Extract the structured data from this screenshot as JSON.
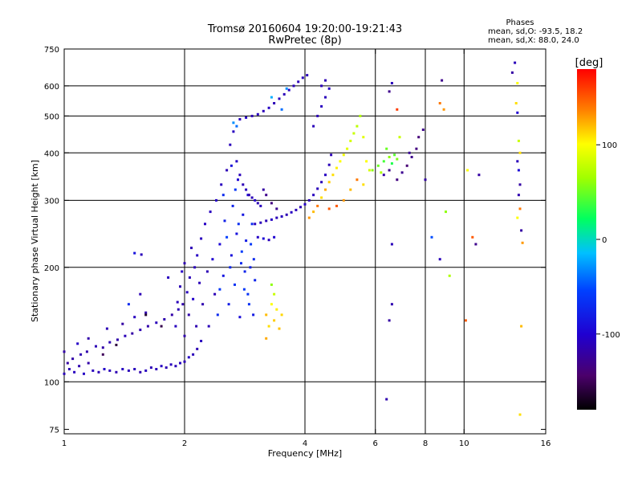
{
  "chart_data": {
    "type": "scatter",
    "title": "Tromsø 20160604 19:20:00-19:21:43",
    "subtitle": "RwPretec (8p)",
    "stats": {
      "heading": "Phases",
      "line1": "mean, sd,O: -93.5, 18.2",
      "line2": "mean, sd,X:  88.0, 24.0"
    },
    "xlabel": "Frequency [MHz]",
    "ylabel": "Stationary phase Virtual Height [km]",
    "xscale": "log",
    "yscale": "log",
    "xlim": [
      1,
      16
    ],
    "ylim": [
      73,
      750
    ],
    "xticks": [
      1,
      2,
      4,
      6,
      8,
      10,
      16
    ],
    "xtick_labels": [
      "1",
      "2",
      "4",
      "6",
      "8",
      "10",
      "16"
    ],
    "xgrid": [
      2,
      4,
      6,
      8,
      10
    ],
    "yticks": [
      75,
      100,
      200,
      300,
      400,
      500,
      600,
      750
    ],
    "ytick_labels": [
      "75",
      "100",
      "200",
      "300",
      "400",
      "500",
      "600",
      "750"
    ],
    "ygrid": [
      100,
      200,
      300,
      400,
      500,
      600
    ],
    "colorbar": {
      "label": "[deg]",
      "range": [
        -180,
        180
      ],
      "ticks": [
        100,
        0,
        -100
      ],
      "tick_labels": [
        "100",
        "0",
        "-100"
      ]
    },
    "grid": true,
    "points": [
      [
        1.0,
        105,
        -110
      ],
      [
        1.03,
        108,
        -112
      ],
      [
        1.06,
        106,
        -108
      ],
      [
        1.09,
        110,
        -115
      ],
      [
        1.12,
        105,
        -106
      ],
      [
        1.15,
        112,
        -118
      ],
      [
        1.18,
        107,
        -109
      ],
      [
        1.22,
        106,
        -112
      ],
      [
        1.26,
        108,
        -104
      ],
      [
        1.3,
        107,
        -110
      ],
      [
        1.35,
        106,
        -113
      ],
      [
        1.4,
        108,
        -107
      ],
      [
        1.45,
        107,
        -111
      ],
      [
        1.5,
        108,
        -109
      ],
      [
        1.55,
        106,
        -114
      ],
      [
        1.6,
        107,
        -108
      ],
      [
        1.65,
        109,
        -112
      ],
      [
        1.7,
        108,
        -110
      ],
      [
        1.75,
        110,
        -107
      ],
      [
        1.8,
        109,
        -113
      ],
      [
        1.85,
        111,
        -109
      ],
      [
        1.9,
        110,
        -111
      ],
      [
        1.95,
        112,
        -108
      ],
      [
        2.0,
        113,
        -112
      ],
      [
        2.05,
        116,
        -106
      ],
      [
        2.1,
        118,
        -110
      ],
      [
        2.15,
        122,
        -113
      ],
      [
        2.2,
        128,
        -108
      ],
      [
        1.02,
        112,
        -120
      ],
      [
        1.05,
        115,
        -118
      ],
      [
        1.1,
        118,
        -114
      ],
      [
        1.14,
        120,
        -116
      ],
      [
        1.2,
        124,
        -112
      ],
      [
        1.25,
        123,
        -118
      ],
      [
        1.3,
        127,
        -113
      ],
      [
        1.36,
        129,
        -116
      ],
      [
        1.42,
        132,
        -111
      ],
      [
        1.48,
        134,
        -119
      ],
      [
        1.55,
        137,
        -114
      ],
      [
        1.62,
        140,
        -117
      ],
      [
        1.7,
        143,
        -110
      ],
      [
        1.78,
        146,
        -115
      ],
      [
        1.86,
        150,
        -118
      ],
      [
        1.93,
        155,
        -112
      ],
      [
        1.98,
        160,
        -116
      ],
      [
        1.0,
        120,
        -118
      ],
      [
        1.08,
        126,
        -105
      ],
      [
        1.15,
        130,
        -117
      ],
      [
        1.28,
        138,
        -112
      ],
      [
        1.4,
        142,
        -120
      ],
      [
        1.5,
        148,
        -108
      ],
      [
        1.6,
        152,
        -115
      ],
      [
        1.45,
        160,
        -70
      ],
      [
        1.55,
        170,
        -112
      ],
      [
        1.5,
        218,
        -88
      ],
      [
        1.56,
        216,
        -110
      ],
      [
        1.82,
        188,
        -108
      ],
      [
        1.25,
        118,
        -150
      ],
      [
        1.35,
        125,
        -160
      ],
      [
        1.6,
        150,
        -165
      ],
      [
        1.75,
        140,
        -155
      ],
      [
        1.9,
        140,
        -108
      ],
      [
        1.92,
        162,
        -110
      ],
      [
        1.95,
        178,
        -112
      ],
      [
        1.97,
        195,
        -105
      ],
      [
        2.0,
        132,
        -116
      ],
      [
        2.0,
        205,
        -114
      ],
      [
        2.03,
        172,
        -108
      ],
      [
        2.05,
        150,
        -116
      ],
      [
        2.06,
        188,
        -110
      ],
      [
        2.08,
        225,
        -112
      ],
      [
        2.1,
        165,
        -103
      ],
      [
        2.12,
        200,
        -110
      ],
      [
        2.14,
        140,
        -114
      ],
      [
        2.15,
        215,
        -106
      ],
      [
        2.18,
        182,
        -111
      ],
      [
        2.2,
        238,
        -109
      ],
      [
        2.22,
        160,
        -115
      ],
      [
        2.25,
        260,
        -106
      ],
      [
        2.28,
        195,
        -112
      ],
      [
        2.3,
        140,
        -110
      ],
      [
        2.32,
        280,
        -108
      ],
      [
        2.35,
        210,
        -100
      ],
      [
        2.38,
        170,
        -112
      ],
      [
        2.4,
        300,
        -105
      ],
      [
        2.42,
        150,
        -70
      ],
      [
        2.45,
        230,
        -95
      ],
      [
        2.47,
        330,
        -108
      ],
      [
        2.5,
        190,
        -85
      ],
      [
        2.52,
        265,
        -78
      ],
      [
        2.55,
        360,
        -112
      ],
      [
        2.58,
        160,
        -80
      ],
      [
        2.6,
        420,
        -110
      ],
      [
        2.62,
        215,
        -90
      ],
      [
        2.64,
        290,
        -75
      ],
      [
        2.65,
        455,
        -108
      ],
      [
        2.67,
        180,
        -65
      ],
      [
        2.7,
        245,
        -88
      ],
      [
        2.72,
        340,
        -100
      ],
      [
        2.75,
        148,
        -92
      ],
      [
        2.77,
        205,
        -70
      ],
      [
        2.8,
        275,
        -85
      ],
      [
        2.82,
        175,
        -60
      ],
      [
        2.85,
        235,
        -80
      ],
      [
        2.88,
        310,
        -92
      ],
      [
        2.9,
        160,
        -65
      ],
      [
        2.92,
        200,
        -78
      ],
      [
        2.95,
        260,
        -70
      ],
      [
        2.97,
        150,
        -82
      ],
      [
        3.0,
        185,
        -75
      ],
      [
        2.45,
        175,
        -60
      ],
      [
        2.5,
        310,
        -70
      ],
      [
        2.55,
        240,
        -55
      ],
      [
        2.6,
        200,
        -72
      ],
      [
        2.62,
        370,
        -90
      ],
      [
        2.68,
        320,
        -62
      ],
      [
        2.73,
        260,
        -68
      ],
      [
        2.78,
        220,
        -58
      ],
      [
        2.83,
        195,
        -75
      ],
      [
        2.88,
        170,
        -64
      ],
      [
        2.93,
        230,
        -60
      ],
      [
        2.98,
        210,
        -70
      ],
      [
        2.7,
        380,
        -105
      ],
      [
        2.75,
        350,
        -110
      ],
      [
        2.8,
        330,
        -112
      ],
      [
        2.85,
        320,
        -108
      ],
      [
        2.9,
        310,
        -115
      ],
      [
        2.95,
        305,
        -110
      ],
      [
        3.0,
        300,
        -105
      ],
      [
        3.05,
        295,
        -112
      ],
      [
        3.1,
        290,
        -108
      ],
      [
        3.15,
        320,
        -120
      ],
      [
        3.2,
        310,
        -130
      ],
      [
        3.3,
        295,
        -135
      ],
      [
        3.4,
        285,
        -128
      ],
      [
        3.0,
        260,
        -108
      ],
      [
        3.1,
        262,
        -110
      ],
      [
        3.2,
        265,
        -112
      ],
      [
        3.3,
        267,
        -106
      ],
      [
        3.4,
        270,
        -111
      ],
      [
        3.5,
        272,
        -108
      ],
      [
        3.6,
        275,
        -113
      ],
      [
        3.7,
        279,
        -107
      ],
      [
        3.8,
        283,
        -110
      ],
      [
        3.9,
        288,
        -112
      ],
      [
        4.0,
        293,
        -106
      ],
      [
        4.1,
        300,
        -111
      ],
      [
        4.2,
        310,
        -108
      ],
      [
        4.3,
        322,
        -110
      ],
      [
        4.4,
        335,
        -112
      ],
      [
        4.5,
        350,
        -107
      ],
      [
        4.6,
        372,
        -110
      ],
      [
        4.65,
        395,
        -112
      ],
      [
        3.05,
        240,
        -105
      ],
      [
        3.15,
        238,
        -95
      ],
      [
        3.25,
        236,
        -110
      ],
      [
        3.35,
        240,
        -100
      ],
      [
        2.75,
        490,
        -110
      ],
      [
        2.85,
        495,
        -105
      ],
      [
        2.95,
        500,
        -112
      ],
      [
        3.05,
        505,
        -108
      ],
      [
        3.15,
        515,
        -110
      ],
      [
        3.25,
        525,
        -106
      ],
      [
        3.35,
        540,
        -112
      ],
      [
        3.45,
        555,
        -109
      ],
      [
        3.55,
        570,
        -111
      ],
      [
        3.65,
        585,
        -107
      ],
      [
        3.75,
        600,
        -110
      ],
      [
        3.85,
        615,
        -112
      ],
      [
        3.95,
        630,
        -108
      ],
      [
        4.05,
        640,
        -110
      ],
      [
        2.65,
        480,
        -30
      ],
      [
        2.7,
        470,
        -40
      ],
      [
        3.3,
        560,
        -20
      ],
      [
        3.5,
        520,
        -40
      ],
      [
        3.6,
        590,
        -30
      ],
      [
        3.2,
        150,
        120
      ],
      [
        3.25,
        140,
        110
      ],
      [
        3.3,
        160,
        100
      ],
      [
        3.35,
        145,
        115
      ],
      [
        3.4,
        155,
        105
      ],
      [
        3.45,
        138,
        118
      ],
      [
        3.5,
        150,
        112
      ],
      [
        3.3,
        180,
        60
      ],
      [
        3.35,
        170,
        80
      ],
      [
        3.2,
        130,
        125
      ],
      [
        4.1,
        270,
        130
      ],
      [
        4.2,
        280,
        120
      ],
      [
        4.3,
        290,
        140
      ],
      [
        4.4,
        305,
        110
      ],
      [
        4.5,
        320,
        125
      ],
      [
        4.6,
        335,
        115
      ],
      [
        4.7,
        350,
        110
      ],
      [
        4.8,
        365,
        105
      ],
      [
        4.9,
        380,
        100
      ],
      [
        5.0,
        395,
        95
      ],
      [
        5.1,
        410,
        90
      ],
      [
        5.2,
        430,
        85
      ],
      [
        5.3,
        450,
        80
      ],
      [
        5.4,
        470,
        75
      ],
      [
        5.5,
        500,
        70
      ],
      [
        5.6,
        440,
        90
      ],
      [
        5.7,
        380,
        100
      ],
      [
        5.8,
        360,
        85
      ],
      [
        5.0,
        300,
        130
      ],
      [
        5.2,
        320,
        120
      ],
      [
        5.4,
        340,
        140
      ],
      [
        5.6,
        330,
        110
      ],
      [
        4.8,
        290,
        150
      ],
      [
        4.6,
        285,
        150
      ],
      [
        4.2,
        470,
        -110
      ],
      [
        4.3,
        500,
        -112
      ],
      [
        4.4,
        530,
        -108
      ],
      [
        4.5,
        560,
        -110
      ],
      [
        4.6,
        590,
        -106
      ],
      [
        4.5,
        620,
        -112
      ],
      [
        4.4,
        600,
        -110
      ],
      [
        5.9,
        360,
        60
      ],
      [
        6.1,
        370,
        50
      ],
      [
        6.3,
        380,
        40
      ],
      [
        6.5,
        390,
        60
      ],
      [
        6.4,
        410,
        50
      ],
      [
        6.6,
        375,
        30
      ],
      [
        6.7,
        395,
        45
      ],
      [
        6.2,
        355,
        70
      ],
      [
        6.8,
        385,
        55
      ],
      [
        6.3,
        350,
        -120
      ],
      [
        6.5,
        360,
        -130
      ],
      [
        6.8,
        340,
        -135
      ],
      [
        7.0,
        355,
        -128
      ],
      [
        7.2,
        370,
        -140
      ],
      [
        7.4,
        390,
        -130
      ],
      [
        7.6,
        410,
        -135
      ],
      [
        7.7,
        440,
        -138
      ],
      [
        7.9,
        460,
        -130
      ],
      [
        7.3,
        400,
        -125
      ],
      [
        6.9,
        440,
        80
      ],
      [
        6.8,
        520,
        160
      ],
      [
        6.6,
        610,
        -110
      ],
      [
        6.5,
        580,
        -130
      ],
      [
        8.8,
        620,
        -130
      ],
      [
        8.7,
        540,
        140
      ],
      [
        8.9,
        520,
        130
      ],
      [
        8.0,
        340,
        -120
      ],
      [
        8.3,
        240,
        -50
      ],
      [
        9.0,
        280,
        60
      ],
      [
        9.2,
        190,
        70
      ],
      [
        8.7,
        210,
        -110
      ],
      [
        10.2,
        360,
        100
      ],
      [
        10.5,
        240,
        150
      ],
      [
        10.9,
        350,
        -120
      ],
      [
        10.7,
        230,
        -130
      ],
      [
        10.1,
        145,
        150
      ],
      [
        6.6,
        230,
        -110
      ],
      [
        6.6,
        160,
        -115
      ],
      [
        6.5,
        145,
        -120
      ],
      [
        6.4,
        90,
        -115
      ],
      [
        13.2,
        650,
        -120
      ],
      [
        13.4,
        690,
        -110
      ],
      [
        13.6,
        610,
        100
      ],
      [
        13.5,
        540,
        110
      ],
      [
        13.6,
        510,
        -100
      ],
      [
        13.7,
        430,
        80
      ],
      [
        13.8,
        400,
        110
      ],
      [
        13.6,
        380,
        -110
      ],
      [
        13.7,
        360,
        -95
      ],
      [
        13.8,
        330,
        -120
      ],
      [
        13.7,
        310,
        -115
      ],
      [
        13.8,
        285,
        140
      ],
      [
        13.6,
        270,
        100
      ],
      [
        13.9,
        250,
        -120
      ],
      [
        14.0,
        232,
        130
      ],
      [
        13.9,
        140,
        120
      ],
      [
        13.8,
        82,
        110
      ]
    ]
  }
}
